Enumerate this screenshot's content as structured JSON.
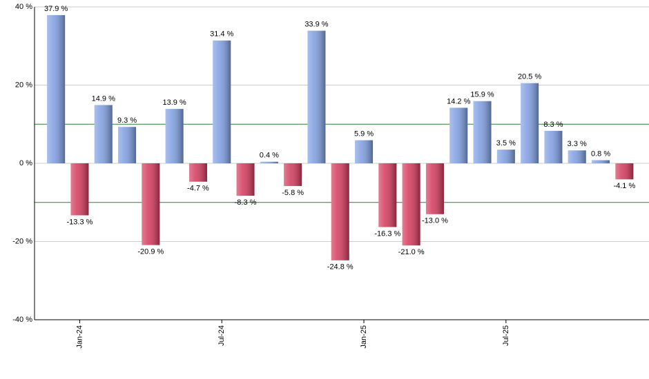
{
  "chart_data": {
    "type": "bar",
    "categories": [
      null,
      "Jan-24",
      null,
      null,
      null,
      null,
      null,
      "Jul-24",
      null,
      null,
      null,
      null,
      null,
      "Jan-25",
      null,
      null,
      null,
      null,
      null,
      "Jul-25",
      null,
      null,
      null,
      null,
      null
    ],
    "values": [
      37.9,
      -13.3,
      14.9,
      9.3,
      -20.9,
      13.9,
      -4.7,
      31.4,
      -8.3,
      0.4,
      -5.8,
      33.9,
      -24.8,
      5.9,
      -16.3,
      -21.0,
      -13.0,
      14.2,
      15.9,
      3.5,
      20.5,
      8.3,
      3.3,
      0.8,
      -4.1
    ],
    "value_labels": [
      "37.9 %",
      "-13.3 %",
      "14.9 %",
      "9.3 %",
      "-20.9 %",
      "13.9 %",
      "-4.7 %",
      "31.4 %",
      "-8.3 %",
      "0.4 %",
      "-5.8 %",
      "33.9 %",
      "-24.8 %",
      "5.9 %",
      "-16.3 %",
      "-21.0 %",
      "-13.0 %",
      "14.2 %",
      "15.9 %",
      "3.5 %",
      "20.5 %",
      "8.3 %",
      "3.3 %",
      "0.8 %",
      "-4.1 %"
    ],
    "positive_color": "#7d9de0",
    "negative_color": "#d2385a",
    "ylim": [
      -40,
      40
    ],
    "yticks": [
      {
        "value": -40,
        "label": "-40 %"
      },
      {
        "value": -20,
        "label": "-20 %"
      },
      {
        "value": 0,
        "label": "0 %"
      },
      {
        "value": 20,
        "label": "20 %"
      },
      {
        "value": 40,
        "label": "40 %"
      }
    ],
    "grid": true,
    "reference_lines": [
      10,
      -10
    ],
    "reference_color": "#2e7d32"
  }
}
